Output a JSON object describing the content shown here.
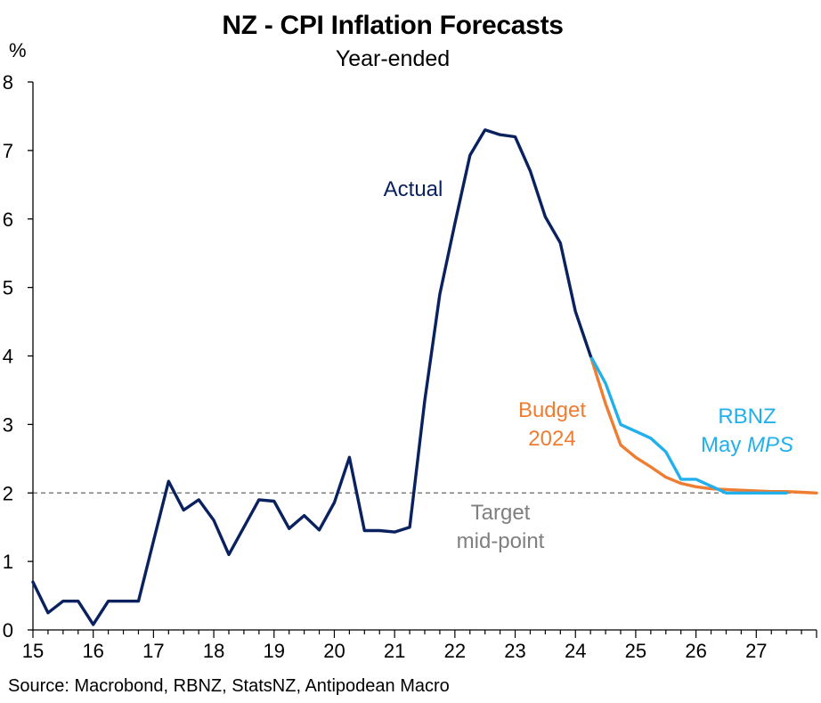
{
  "chart_data": {
    "type": "line",
    "title": "NZ - CPI Inflation Forecasts",
    "subtitle": "Year-ended",
    "ylabel": "%",
    "xlabel": "",
    "source": "Source: Macrobond, RBNZ, StatsNZ, Antipodean Macro",
    "xlim": [
      2015.0,
      2028.0
    ],
    "ylim": [
      0,
      8
    ],
    "y_ticks": [
      "0",
      "1",
      "2",
      "3",
      "4",
      "5",
      "6",
      "7",
      "8"
    ],
    "x_ticks": [
      "15",
      "16",
      "17",
      "18",
      "19",
      "20",
      "21",
      "22",
      "23",
      "24",
      "25",
      "26",
      "27"
    ],
    "reference_line": {
      "name": "Target mid-point",
      "label_lines": [
        "Target",
        "mid-point"
      ],
      "value": 2.0,
      "color": "#7f7f7f"
    },
    "series": [
      {
        "name": "Actual",
        "label_lines": [
          "Actual"
        ],
        "color": "#0a2160",
        "x": [
          2015.0,
          2015.25,
          2015.5,
          2015.75,
          2016.0,
          2016.25,
          2016.5,
          2016.75,
          2017.0,
          2017.25,
          2017.5,
          2017.75,
          2018.0,
          2018.25,
          2018.5,
          2018.75,
          2019.0,
          2019.25,
          2019.5,
          2019.75,
          2020.0,
          2020.25,
          2020.5,
          2020.75,
          2021.0,
          2021.25,
          2021.5,
          2021.75,
          2022.0,
          2022.25,
          2022.5,
          2022.75,
          2023.0,
          2023.25,
          2023.5,
          2023.75,
          2024.0,
          2024.25
        ],
        "values": [
          0.7,
          0.25,
          0.42,
          0.42,
          0.08,
          0.42,
          0.42,
          0.42,
          1.3,
          2.17,
          1.75,
          1.9,
          1.6,
          1.1,
          1.5,
          1.9,
          1.88,
          1.48,
          1.67,
          1.46,
          1.86,
          2.52,
          1.45,
          1.45,
          1.43,
          1.5,
          3.35,
          4.9,
          5.93,
          6.93,
          7.3,
          7.23,
          7.2,
          6.7,
          6.03,
          5.65,
          4.65,
          4.0
        ]
      },
      {
        "name": "Budget 2024",
        "label_lines": [
          "Budget",
          "2024"
        ],
        "color": "#ee7d31",
        "x": [
          2024.25,
          2024.5,
          2024.75,
          2025.0,
          2025.25,
          2025.5,
          2025.75,
          2026.0,
          2026.25,
          2026.5,
          2026.75,
          2027.0,
          2027.25,
          2027.5,
          2027.75,
          2028.0
        ],
        "values": [
          4.0,
          3.3,
          2.7,
          2.52,
          2.38,
          2.23,
          2.14,
          2.09,
          2.06,
          2.05,
          2.04,
          2.03,
          2.02,
          2.02,
          2.01,
          2.0
        ]
      },
      {
        "name": "RBNZ May MPS",
        "label_lines": [
          "RBNZ",
          "May"
        ],
        "label_italic": "MPS",
        "color": "#22b0ec",
        "x": [
          2024.25,
          2024.5,
          2024.75,
          2025.0,
          2025.25,
          2025.5,
          2025.75,
          2026.0,
          2026.25,
          2026.5,
          2026.75,
          2027.0,
          2027.25,
          2027.5
        ],
        "values": [
          4.0,
          3.6,
          3.0,
          2.9,
          2.8,
          2.6,
          2.2,
          2.2,
          2.1,
          2.0,
          2.0,
          2.0,
          2.0,
          2.0
        ]
      }
    ]
  }
}
